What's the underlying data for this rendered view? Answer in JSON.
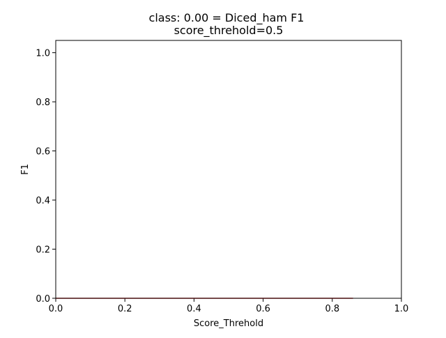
{
  "chart_data": {
    "type": "line",
    "title": "class: 0.00 = Diced_ham F1",
    "subtitle": "score_threhold=0.5",
    "xlabel": "Score_Threhold",
    "ylabel": "F1",
    "xlim": [
      0.0,
      1.0
    ],
    "ylim": [
      0.0,
      1.05
    ],
    "x_ticks": [
      "0.0",
      "0.2",
      "0.4",
      "0.6",
      "0.8",
      "1.0"
    ],
    "y_ticks": [
      "0.0",
      "0.2",
      "0.4",
      "0.6",
      "0.8",
      "1.0"
    ],
    "grid": false,
    "series": [
      {
        "color": "#d62728",
        "x": [
          0.0,
          0.86
        ],
        "y": [
          0.0,
          0.0
        ]
      }
    ]
  },
  "colors": {
    "line": "#d62728",
    "axes": "#000000",
    "background": "#ffffff"
  }
}
